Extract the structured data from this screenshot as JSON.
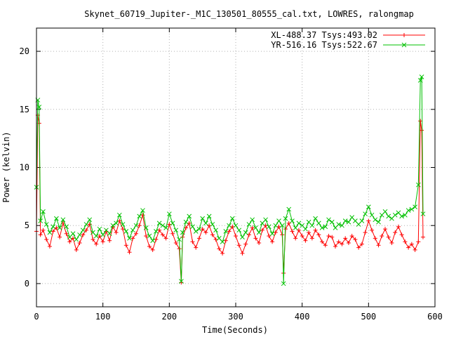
{
  "chart_data": {
    "type": "line",
    "title": "Skynet_60719_Jupiter-_M1C_130501_80555_cal.txt, LOWRES, ralongmap",
    "xlabel": "Time(Seconds)",
    "ylabel": "Power (kelvin)",
    "xlim": [
      0,
      600
    ],
    "ylim": [
      -2,
      22
    ],
    "xticks": [
      0,
      100,
      200,
      300,
      400,
      500,
      600
    ],
    "yticks": [
      0,
      5,
      10,
      15,
      20
    ],
    "legend_position": "top-right",
    "series": [
      {
        "name": "XL-488.37 Tsys:493.02",
        "color": "#ff0000",
        "marker": "+",
        "x": [
          0,
          2,
          4,
          6,
          10,
          15,
          20,
          25,
          30,
          35,
          40,
          45,
          50,
          55,
          60,
          65,
          70,
          75,
          80,
          85,
          90,
          95,
          100,
          105,
          110,
          115,
          120,
          125,
          130,
          135,
          140,
          145,
          150,
          155,
          160,
          165,
          170,
          175,
          180,
          185,
          190,
          195,
          200,
          205,
          210,
          215,
          218,
          220,
          225,
          230,
          235,
          240,
          245,
          250,
          255,
          260,
          265,
          270,
          275,
          280,
          285,
          290,
          295,
          300,
          305,
          310,
          315,
          320,
          325,
          330,
          335,
          340,
          345,
          350,
          355,
          360,
          365,
          370,
          372,
          375,
          380,
          385,
          390,
          395,
          400,
          405,
          410,
          415,
          420,
          425,
          430,
          435,
          440,
          445,
          450,
          455,
          460,
          465,
          470,
          475,
          480,
          485,
          490,
          495,
          500,
          505,
          510,
          515,
          520,
          525,
          530,
          535,
          540,
          545,
          550,
          555,
          560,
          565,
          570,
          575,
          578,
          580,
          582
        ],
        "y": [
          4.5,
          14.5,
          13.8,
          4.2,
          4.6,
          3.8,
          3.2,
          4.5,
          4.8,
          4.0,
          5.2,
          4.3,
          3.6,
          3.9,
          2.9,
          3.5,
          4.2,
          4.6,
          5.1,
          3.8,
          3.4,
          4.1,
          3.6,
          4.5,
          3.7,
          4.9,
          4.4,
          5.4,
          4.7,
          3.3,
          2.7,
          3.9,
          4.3,
          5.0,
          5.9,
          4.1,
          3.2,
          2.9,
          3.8,
          4.6,
          4.2,
          3.9,
          5.1,
          4.3,
          3.5,
          3.0,
          0.1,
          4.0,
          4.8,
          5.2,
          3.6,
          3.1,
          3.9,
          4.7,
          4.4,
          5.0,
          4.2,
          3.8,
          3.0,
          2.6,
          3.7,
          4.5,
          4.9,
          4.1,
          3.3,
          2.6,
          3.4,
          4.2,
          4.8,
          3.9,
          3.5,
          4.6,
          5.0,
          4.1,
          3.6,
          4.4,
          4.9,
          4.2,
          0.9,
          4.7,
          5.2,
          4.5,
          3.9,
          4.6,
          4.1,
          3.7,
          4.4,
          3.9,
          4.6,
          4.2,
          3.6,
          3.3,
          4.1,
          4.0,
          3.2,
          3.6,
          3.4,
          3.9,
          3.5,
          4.1,
          3.8,
          3.1,
          3.4,
          4.4,
          5.4,
          4.6,
          3.9,
          3.3,
          4.1,
          4.7,
          4.0,
          3.5,
          4.4,
          4.9,
          4.2,
          3.6,
          3.1,
          3.4,
          2.9,
          3.6,
          14.0,
          13.2,
          4.0
        ]
      },
      {
        "name": "YR-516.16 Tsys:522.67",
        "color": "#00c000",
        "marker": "x",
        "x": [
          0,
          2,
          4,
          6,
          10,
          15,
          20,
          25,
          30,
          35,
          40,
          45,
          50,
          55,
          60,
          65,
          70,
          75,
          80,
          85,
          90,
          95,
          100,
          105,
          110,
          115,
          120,
          125,
          130,
          135,
          140,
          145,
          150,
          155,
          160,
          165,
          170,
          175,
          180,
          185,
          190,
          195,
          200,
          205,
          210,
          215,
          218,
          220,
          225,
          230,
          235,
          240,
          245,
          250,
          255,
          260,
          265,
          270,
          275,
          280,
          285,
          290,
          295,
          300,
          305,
          310,
          315,
          320,
          325,
          330,
          335,
          340,
          345,
          350,
          355,
          360,
          365,
          370,
          372,
          375,
          380,
          385,
          390,
          395,
          400,
          405,
          410,
          415,
          420,
          425,
          430,
          435,
          440,
          445,
          450,
          455,
          460,
          465,
          470,
          475,
          480,
          485,
          490,
          495,
          500,
          505,
          510,
          515,
          520,
          525,
          530,
          535,
          540,
          545,
          550,
          555,
          560,
          565,
          570,
          575,
          578,
          580,
          582
        ],
        "y": [
          8.3,
          15.8,
          15.2,
          5.4,
          6.2,
          5.1,
          4.4,
          4.9,
          5.6,
          4.8,
          5.5,
          4.9,
          4.0,
          4.3,
          3.8,
          4.2,
          4.6,
          5.1,
          5.5,
          4.4,
          4.1,
          4.7,
          4.2,
          4.6,
          4.3,
          5.0,
          5.2,
          5.9,
          5.1,
          4.5,
          3.9,
          4.6,
          5.0,
          5.8,
          6.3,
          4.8,
          4.1,
          3.7,
          4.5,
          5.2,
          5.0,
          4.8,
          6.0,
          5.2,
          4.6,
          3.8,
          0.2,
          4.4,
          5.3,
          5.8,
          4.9,
          4.5,
          4.7,
          5.6,
          5.2,
          5.8,
          5.1,
          4.6,
          3.9,
          3.6,
          4.5,
          5.0,
          5.6,
          5.0,
          4.6,
          4.0,
          4.4,
          5.1,
          5.5,
          4.8,
          4.4,
          5.2,
          5.5,
          4.9,
          4.3,
          5.0,
          5.4,
          5.0,
          0.0,
          5.6,
          6.4,
          5.4,
          4.8,
          5.2,
          5.0,
          4.7,
          5.3,
          5.0,
          5.6,
          5.2,
          4.8,
          4.9,
          5.5,
          5.3,
          4.8,
          5.1,
          5.0,
          5.4,
          5.3,
          5.7,
          5.4,
          5.1,
          5.4,
          6.0,
          6.6,
          5.9,
          5.5,
          5.3,
          5.9,
          6.2,
          5.8,
          5.6,
          5.9,
          6.1,
          5.8,
          5.9,
          6.3,
          6.4,
          6.6,
          8.5,
          17.5,
          17.8,
          6.0
        ]
      }
    ]
  }
}
